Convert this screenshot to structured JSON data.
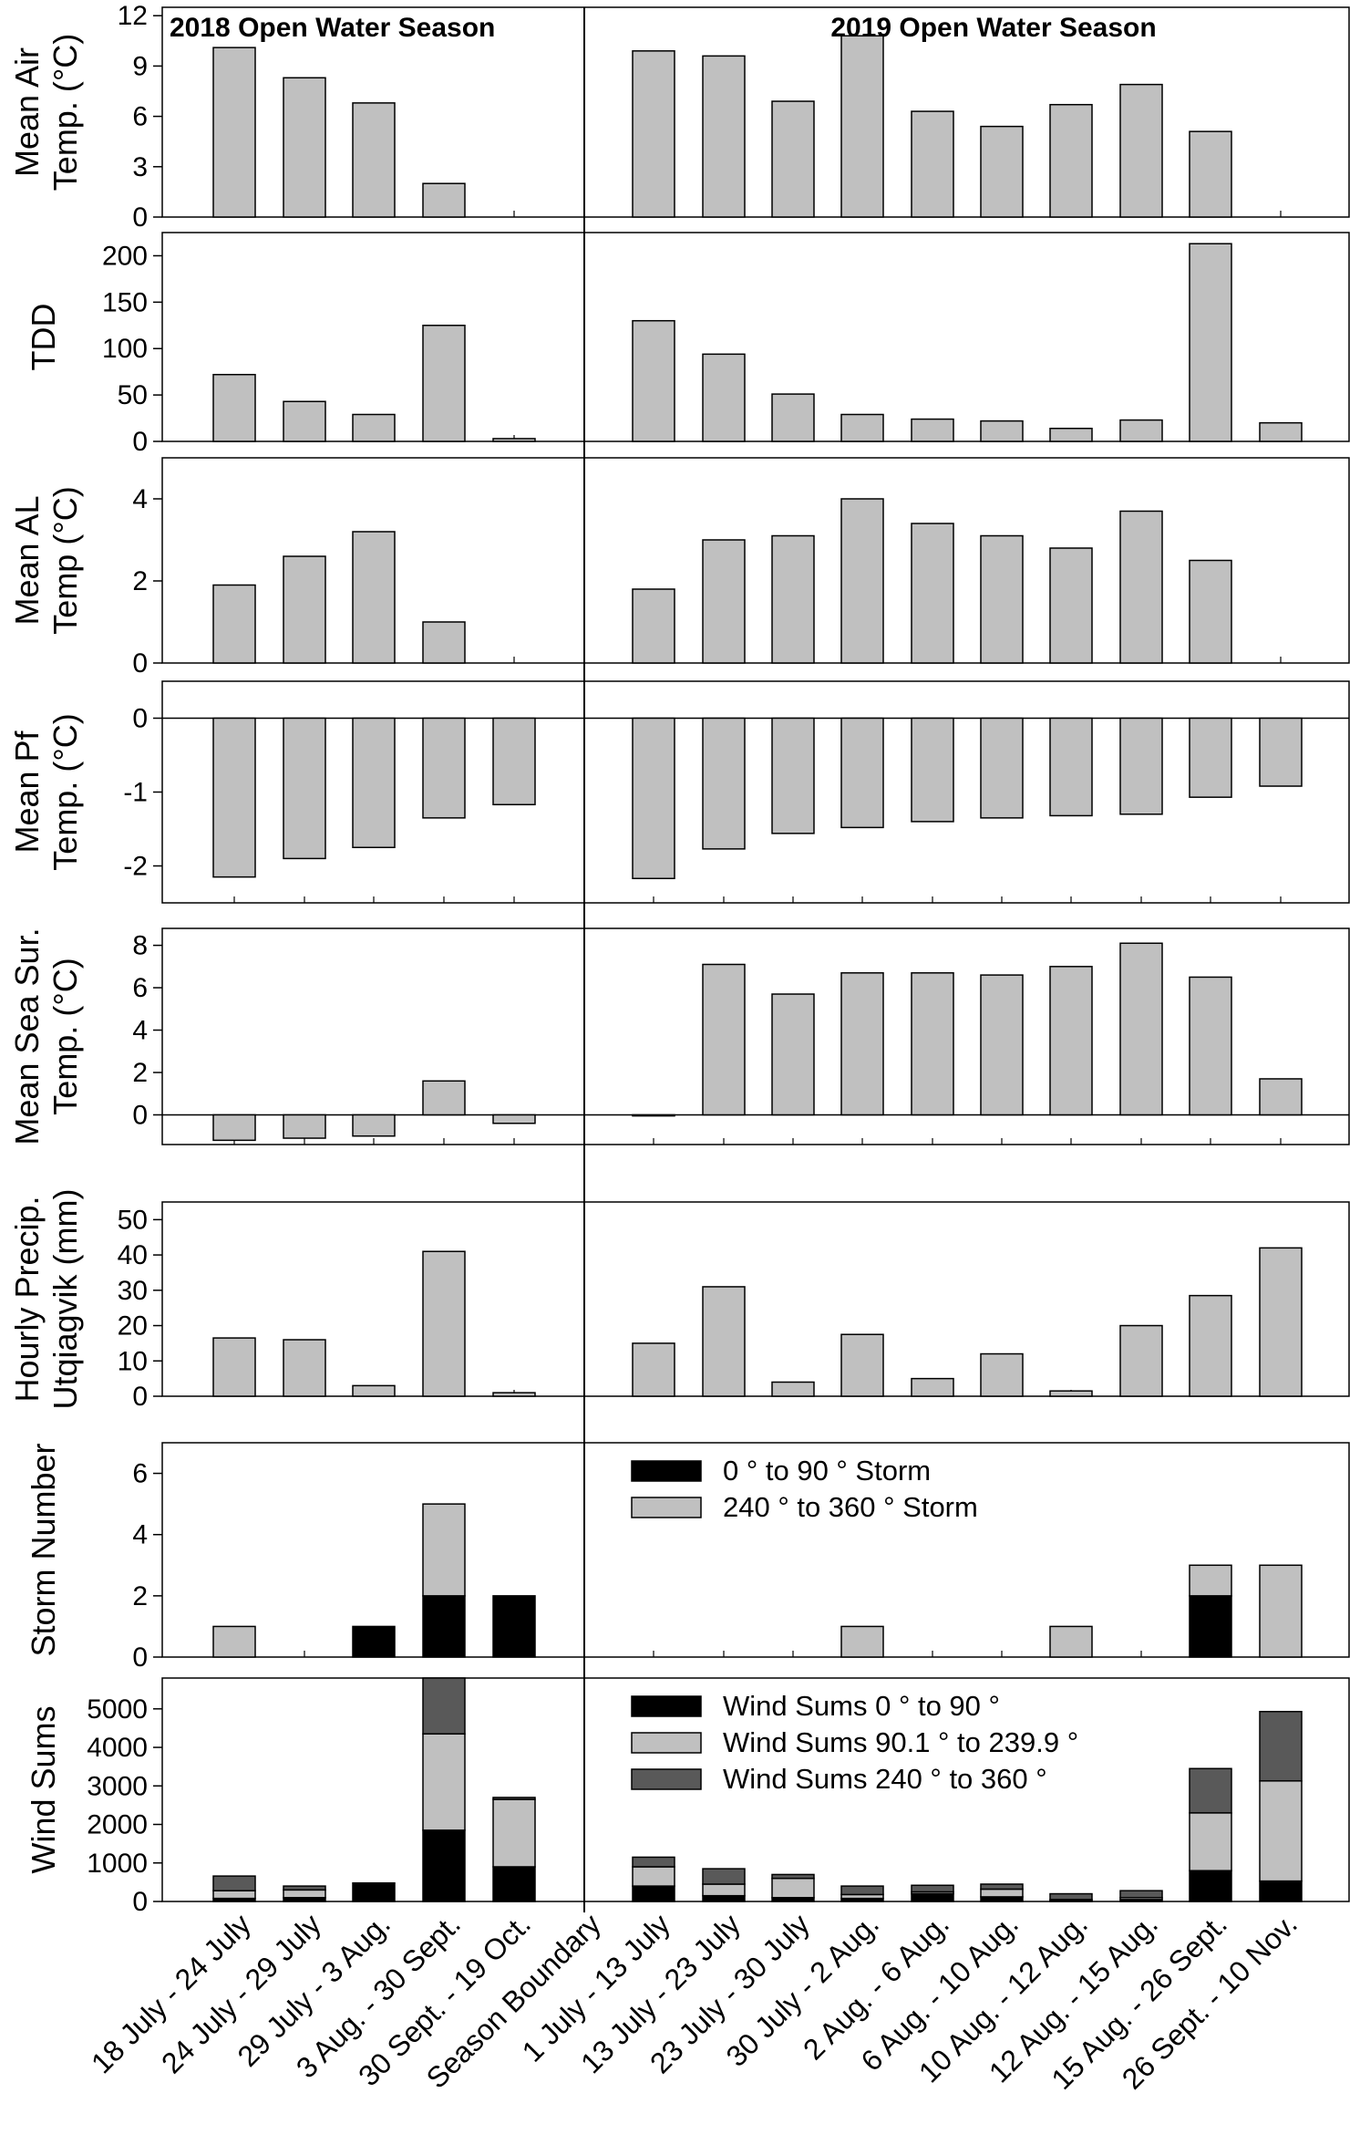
{
  "colors": {
    "bar": "#c0c0c0",
    "black": "#000000",
    "dark": "#595959",
    "background": "#ffffff"
  },
  "chart_data": {
    "type": "bar",
    "categories": [
      "18 July - 24 July",
      "24 July - 29 July",
      "29 July - 3 Aug.",
      "3 Aug. - 30 Sept.",
      "30 Sept. - 19 Oct.",
      "Season Boundary",
      "1 July - 13 July",
      "13 July - 23 July",
      "23 July - 30 July",
      "30 July - 2 Aug.",
      "2 Aug. - 6 Aug.",
      "6 Aug. - 10 Aug.",
      "10 Aug. - 12 Aug.",
      "12 Aug. - 15 Aug.",
      "15 Aug. - 26 Sept.",
      "26 Sept. - 10 Nov."
    ],
    "season_titles": [
      "2018 Open Water Season",
      "2019 Open Water Season"
    ],
    "panels": [
      {
        "id": "air",
        "ylabel": [
          "Mean Air",
          "Temp. (°C)"
        ],
        "ylim": [
          0,
          12.5
        ],
        "ticks": [
          0,
          3,
          6,
          9,
          12
        ],
        "tick_labels": [
          "0",
          "3",
          "6",
          "9",
          "12"
        ],
        "values": [
          10.1,
          8.3,
          6.8,
          2.0,
          null,
          null,
          9.9,
          9.6,
          6.9,
          10.8,
          6.3,
          5.4,
          6.7,
          7.9,
          5.1,
          null
        ]
      },
      {
        "id": "tdd",
        "ylabel": [
          "TDD"
        ],
        "ylim": [
          0,
          225
        ],
        "ticks": [
          0,
          50,
          100,
          150,
          200
        ],
        "tick_labels": [
          "0",
          "50",
          "100",
          "150",
          "200"
        ],
        "values": [
          72,
          43,
          29,
          125,
          3,
          null,
          130,
          94,
          51,
          29,
          24,
          22,
          14,
          23,
          213,
          20
        ]
      },
      {
        "id": "al",
        "ylabel": [
          "Mean AL",
          "Temp (°C)"
        ],
        "ylim": [
          0,
          5
        ],
        "ticks": [
          0,
          2,
          4
        ],
        "tick_labels": [
          "0",
          "2",
          "4"
        ],
        "values": [
          1.9,
          2.6,
          3.2,
          1.0,
          null,
          null,
          1.8,
          3.0,
          3.1,
          4.0,
          3.4,
          3.1,
          2.8,
          3.7,
          2.5,
          null
        ]
      },
      {
        "id": "pf",
        "ylabel": [
          "Mean Pf",
          "Temp. (°C)"
        ],
        "ylim": [
          -2.5,
          0.5
        ],
        "ticks": [
          -2,
          -1,
          0
        ],
        "tick_labels": [
          "-2",
          "-1",
          "0"
        ],
        "zero_line": true,
        "values": [
          -2.15,
          -1.9,
          -1.75,
          -1.35,
          -1.17,
          null,
          -2.17,
          -1.77,
          -1.56,
          -1.48,
          -1.4,
          -1.35,
          -1.32,
          -1.3,
          -1.07,
          -0.92
        ]
      },
      {
        "id": "sst",
        "ylabel": [
          "Mean Sea Sur.",
          "Temp. (°C)"
        ],
        "ylim": [
          -1.4,
          8.8
        ],
        "ticks": [
          0,
          2,
          4,
          6,
          8
        ],
        "tick_labels": [
          "0",
          "2",
          "4",
          "6",
          "8"
        ],
        "zero_line": true,
        "values": [
          -1.2,
          -1.1,
          -1.0,
          1.6,
          -0.4,
          null,
          -0.05,
          7.1,
          5.7,
          6.7,
          6.7,
          6.6,
          7.0,
          8.1,
          6.5,
          1.7
        ]
      },
      {
        "id": "precip",
        "ylabel": [
          "Hourly Precip.",
          "Utqiagvik (mm)"
        ],
        "ylim": [
          0,
          55
        ],
        "ticks": [
          0,
          10,
          20,
          30,
          40,
          50
        ],
        "tick_labels": [
          "0",
          "10",
          "20",
          "30",
          "40",
          "50"
        ],
        "values": [
          16.5,
          16,
          3,
          41,
          1,
          null,
          15,
          31,
          4,
          17.5,
          5,
          12,
          1.5,
          20,
          28.5,
          42
        ]
      },
      {
        "id": "storm",
        "ylabel": [
          "Storm Number"
        ],
        "ylim": [
          0,
          7
        ],
        "ticks": [
          0,
          2,
          4,
          6
        ],
        "tick_labels": [
          "0",
          "2",
          "4",
          "6"
        ],
        "stacked": true,
        "series": [
          {
            "name": "0 ° to 90 ° Storm",
            "color": "#000000",
            "values": [
              0,
              0,
              1,
              2,
              2,
              null,
              0,
              0,
              0,
              0,
              0,
              0,
              0,
              0,
              2,
              0
            ]
          },
          {
            "name": "240 ° to 360 ° Storm",
            "color": "#c0c0c0",
            "values": [
              1,
              0,
              0,
              3,
              0,
              null,
              0,
              0,
              0,
              1,
              0,
              0,
              1,
              0,
              1,
              3
            ]
          }
        ]
      },
      {
        "id": "wind",
        "ylabel": [
          "Wind Sums"
        ],
        "ylim": [
          0,
          5800
        ],
        "ticks": [
          0,
          1000,
          2000,
          3000,
          4000,
          5000
        ],
        "tick_labels": [
          "0",
          "1000",
          "2000",
          "3000",
          "4000",
          "5000"
        ],
        "stacked": true,
        "series": [
          {
            "name": "Wind Sums 0 ° to 90 °",
            "color": "#000000",
            "values": [
              80,
              100,
              480,
              1850,
              900,
              null,
              400,
              150,
              100,
              80,
              200,
              120,
              30,
              50,
              800,
              530
            ]
          },
          {
            "name": "Wind Sums 90.1 ° to 239.9 °",
            "color": "#c0c0c0",
            "values": [
              200,
              200,
              0,
              2500,
              1750,
              null,
              500,
              300,
              500,
              100,
              50,
              200,
              20,
              50,
              1500,
              2600
            ]
          },
          {
            "name": "Wind Sums 240 ° to 360 °",
            "color": "#595959",
            "values": [
              380,
              100,
              0,
              1450,
              50,
              null,
              250,
              400,
              100,
              220,
              170,
              130,
              150,
              180,
              1150,
              1800
            ]
          }
        ]
      }
    ]
  }
}
